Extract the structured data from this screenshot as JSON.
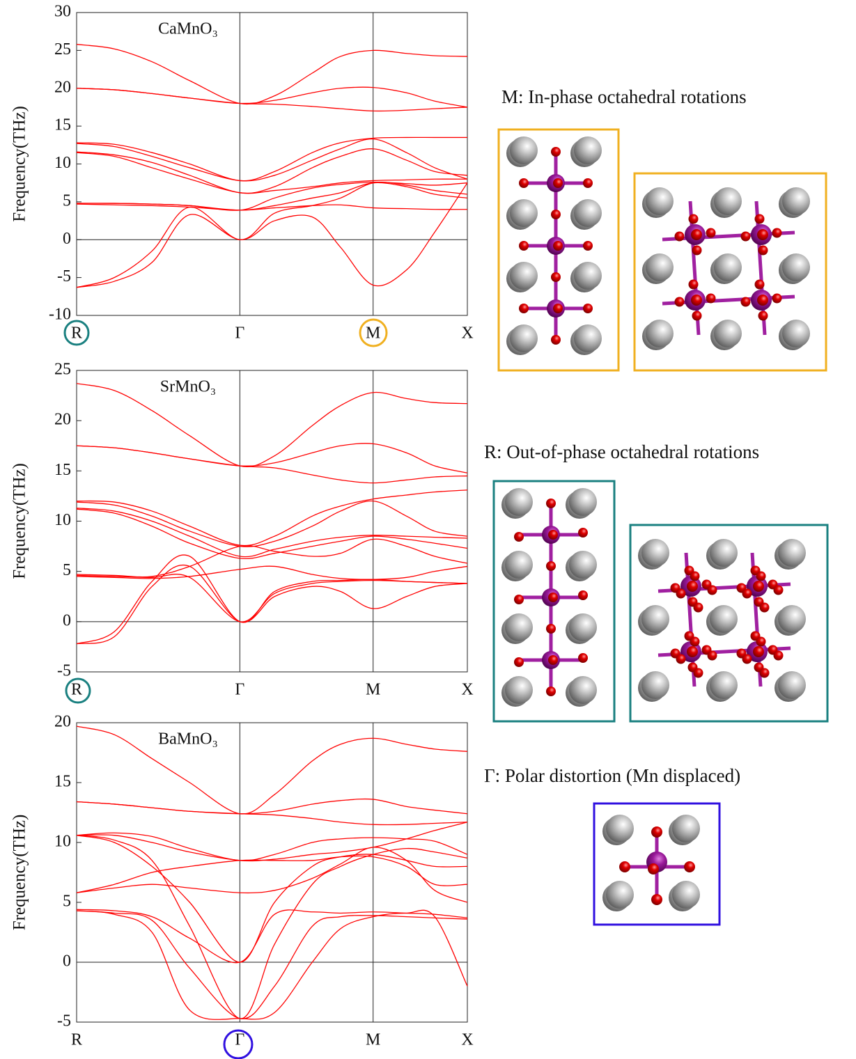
{
  "chart_data": [
    {
      "type": "line",
      "title": "CaMnO₃",
      "y_label": "Frequency(THz)",
      "color": "#ff0000",
      "x": [
        0,
        0.2,
        0.4,
        0.6,
        0.866,
        1.05,
        1.25,
        1.4,
        1.573,
        1.75,
        1.9,
        2.073
      ],
      "xlim": [
        0,
        2.073
      ],
      "xticks": [
        {
          "value": 0,
          "label": "R"
        },
        {
          "value": 0.866,
          "label": "Γ"
        },
        {
          "value": 1.573,
          "label": "M"
        },
        {
          "value": 2.073,
          "label": "X"
        }
      ],
      "ylim": [
        -10,
        30
      ],
      "yticks": [
        -10,
        -5,
        0,
        5,
        10,
        15,
        20,
        25,
        30
      ],
      "series": [
        {
          "values": [
            25.8,
            25.2,
            23.5,
            21,
            18,
            19,
            22,
            24.2,
            25,
            24.6,
            24.3,
            24.2
          ]
        },
        {
          "values": [
            20,
            19.8,
            19.3,
            18.7,
            18,
            18.4,
            19.4,
            20,
            20.1,
            19.4,
            18.3,
            17.5
          ]
        },
        {
          "values": [
            20,
            19.8,
            19.3,
            18.7,
            18,
            17.9,
            17.6,
            17.3,
            17,
            17.1,
            17.3,
            17.5
          ]
        },
        {
          "values": [
            12.8,
            12.6,
            11.5,
            10,
            7.8,
            9,
            11.5,
            12.8,
            13.4,
            13.5,
            13.5,
            13.5
          ]
        },
        {
          "values": [
            12.7,
            12.3,
            11,
            9.5,
            7.8,
            8.5,
            10.5,
            12,
            13.3,
            11.5,
            9.5,
            8
          ]
        },
        {
          "values": [
            11.6,
            11.2,
            10.2,
            8.5,
            6.2,
            7,
            9.5,
            11,
            12,
            10.5,
            9,
            8.5
          ]
        },
        {
          "values": [
            11.5,
            11,
            9.5,
            8,
            6.2,
            6.5,
            7,
            7.5,
            7.8,
            7.9,
            8,
            8
          ]
        },
        {
          "values": [
            4.8,
            4.8,
            4.7,
            4.5,
            3.9,
            5.5,
            6.8,
            7.3,
            7.6,
            7.4,
            7.2,
            7.5
          ]
        },
        {
          "values": [
            4.7,
            4.6,
            4.5,
            4.3,
            3.9,
            4.2,
            4.5,
            4.6,
            4.2,
            4.1,
            4,
            4
          ]
        },
        {
          "values": [
            4.8,
            4.8,
            4.7,
            4.5,
            3.9,
            4.5,
            5.5,
            6.2,
            7.5,
            7,
            6,
            5.5
          ]
        },
        {
          "values": [
            -6.3,
            -5.5,
            -3,
            3.3,
            0,
            2.5,
            3,
            -1,
            -6,
            -4,
            1,
            7.5
          ]
        },
        {
          "values": [
            -6.3,
            -5,
            -1.5,
            4.3,
            0,
            3.5,
            4.5,
            5.5,
            7.5,
            7.2,
            6.5,
            6
          ]
        }
      ]
    },
    {
      "type": "line",
      "title": "SrMnO₃",
      "y_label": "Frequency(THz)",
      "color": "#ff0000",
      "x": [
        0,
        0.2,
        0.4,
        0.6,
        0.866,
        1.05,
        1.25,
        1.4,
        1.573,
        1.75,
        1.9,
        2.073
      ],
      "xlim": [
        0,
        2.073
      ],
      "xticks": [
        {
          "value": 0,
          "label": "R"
        },
        {
          "value": 0.866,
          "label": "Γ"
        },
        {
          "value": 1.573,
          "label": "M"
        },
        {
          "value": 2.073,
          "label": "X"
        }
      ],
      "ylim": [
        -5,
        25
      ],
      "yticks": [
        -5,
        0,
        5,
        10,
        15,
        20,
        25
      ],
      "series": [
        {
          "values": [
            23.7,
            23,
            21,
            18.5,
            15.5,
            16.5,
            19.5,
            21.5,
            22.8,
            22.2,
            21.8,
            21.7
          ]
        },
        {
          "values": [
            17.5,
            17.3,
            16.8,
            16.2,
            15.5,
            15.8,
            16.8,
            17.5,
            17.7,
            16.8,
            15.5,
            14.8
          ]
        },
        {
          "values": [
            17.5,
            17.3,
            16.8,
            16.2,
            15.5,
            15.3,
            14.6,
            14.1,
            13.8,
            14.1,
            14.4,
            14.5
          ]
        },
        {
          "values": [
            12,
            11.9,
            11,
            9.5,
            7.6,
            8.5,
            10.5,
            11.5,
            12.2,
            12.6,
            12.9,
            13.1
          ]
        },
        {
          "values": [
            11.9,
            11.6,
            10.5,
            9,
            7.5,
            8,
            9.5,
            11,
            12,
            10.5,
            9,
            8.5
          ]
        },
        {
          "values": [
            11.3,
            11,
            10,
            8.5,
            6.5,
            7.2,
            8,
            8.4,
            8.6,
            8.5,
            8.4,
            8.3
          ]
        },
        {
          "values": [
            11.2,
            10.8,
            9.5,
            7.8,
            6.3,
            6.8,
            7.5,
            8,
            8.5,
            8.2,
            7.8,
            7.3
          ]
        },
        {
          "values": [
            4.7,
            4.6,
            4.5,
            5.5,
            7.5,
            7,
            6.5,
            6.8,
            8.2,
            7.5,
            6.5,
            5.8
          ]
        },
        {
          "values": [
            4.5,
            4.4,
            4.3,
            4.5,
            5.2,
            5.5,
            4.7,
            4.3,
            4.2,
            4.4,
            5,
            5.5
          ]
        },
        {
          "values": [
            4.6,
            4.5,
            4.4,
            4.4,
            0,
            2.8,
            3.8,
            4,
            4.1,
            4,
            3.9,
            3.8
          ]
        },
        {
          "values": [
            -2.2,
            -1.5,
            3.5,
            5.5,
            0,
            2.5,
            3.5,
            3,
            1.3,
            2.5,
            3.5,
            3.8
          ]
        },
        {
          "values": [
            -2.2,
            -1,
            4,
            6.5,
            0,
            3,
            4,
            4.1,
            4.2,
            4,
            3.9,
            3.8
          ]
        }
      ]
    },
    {
      "type": "line",
      "title": "BaMnO₃",
      "y_label": "Frequency(THz)",
      "color": "#ff0000",
      "x": [
        0,
        0.2,
        0.4,
        0.6,
        0.866,
        1.05,
        1.25,
        1.4,
        1.573,
        1.75,
        1.9,
        2.073
      ],
      "xlim": [
        0,
        2.073
      ],
      "xticks": [
        {
          "value": 0,
          "label": "R"
        },
        {
          "value": 0.866,
          "label": "Γ"
        },
        {
          "value": 1.573,
          "label": "M"
        },
        {
          "value": 2.073,
          "label": "X"
        }
      ],
      "ylim": [
        -5,
        20
      ],
      "yticks": [
        -5,
        0,
        5,
        10,
        15,
        20
      ],
      "series": [
        {
          "values": [
            19.7,
            19,
            17,
            15,
            12.4,
            14,
            16.8,
            18.2,
            18.7,
            18.2,
            17.8,
            17.6
          ]
        },
        {
          "values": [
            13.4,
            13.2,
            12.9,
            12.6,
            12.4,
            12.6,
            13.2,
            13.5,
            13.6,
            13,
            12.7,
            12.4
          ]
        },
        {
          "values": [
            13.4,
            13.2,
            12.9,
            12.6,
            12.4,
            12.3,
            12,
            11.7,
            11.5,
            11.5,
            11.6,
            11.7
          ]
        },
        {
          "values": [
            10.6,
            10.8,
            10.5,
            9.5,
            8.5,
            9,
            10,
            10.3,
            10.4,
            10.3,
            10.1,
            9
          ]
        },
        {
          "values": [
            10.6,
            10.6,
            10,
            9.2,
            8.5,
            8.6,
            9,
            9.2,
            9.6,
            10.3,
            11,
            11.7
          ]
        },
        {
          "values": [
            10.6,
            10,
            8,
            5,
            0,
            5,
            8,
            8.8,
            9,
            8.5,
            8,
            8
          ]
        },
        {
          "values": [
            5.8,
            6.5,
            7.5,
            8,
            8.5,
            8.5,
            8.5,
            8.8,
            8.8,
            8,
            6.5,
            6.5
          ]
        },
        {
          "values": [
            5.8,
            6.2,
            6.5,
            6.2,
            5.8,
            6,
            7,
            8.2,
            9.6,
            8.5,
            6,
            5
          ]
        },
        {
          "values": [
            4.4,
            4.3,
            3.8,
            2,
            0,
            4,
            4.2,
            4.1,
            4.2,
            4.1,
            4,
            3.7
          ]
        },
        {
          "values": [
            4.3,
            4.1,
            3.5,
            -0.5,
            -4.7,
            -2,
            3,
            3.8,
            3.9,
            3.8,
            3.7,
            3.6
          ]
        },
        {
          "values": [
            4.3,
            4,
            2.5,
            -4,
            -4.7,
            -4.2,
            0,
            2.8,
            3.8,
            4.1,
            3.8,
            -2
          ]
        },
        {
          "values": [
            10.6,
            10.2,
            8.5,
            3,
            -4.7,
            1.5,
            6.5,
            8,
            9,
            9.5,
            9.2,
            8.7
          ]
        }
      ]
    }
  ],
  "panels": [
    {
      "caption": "M: In-phase octahedral rotations"
    },
    {
      "caption": "R: Out-of-phase octahedral rotations"
    },
    {
      "caption": "Γ: Polar distortion (Mn displaced)"
    }
  ]
}
